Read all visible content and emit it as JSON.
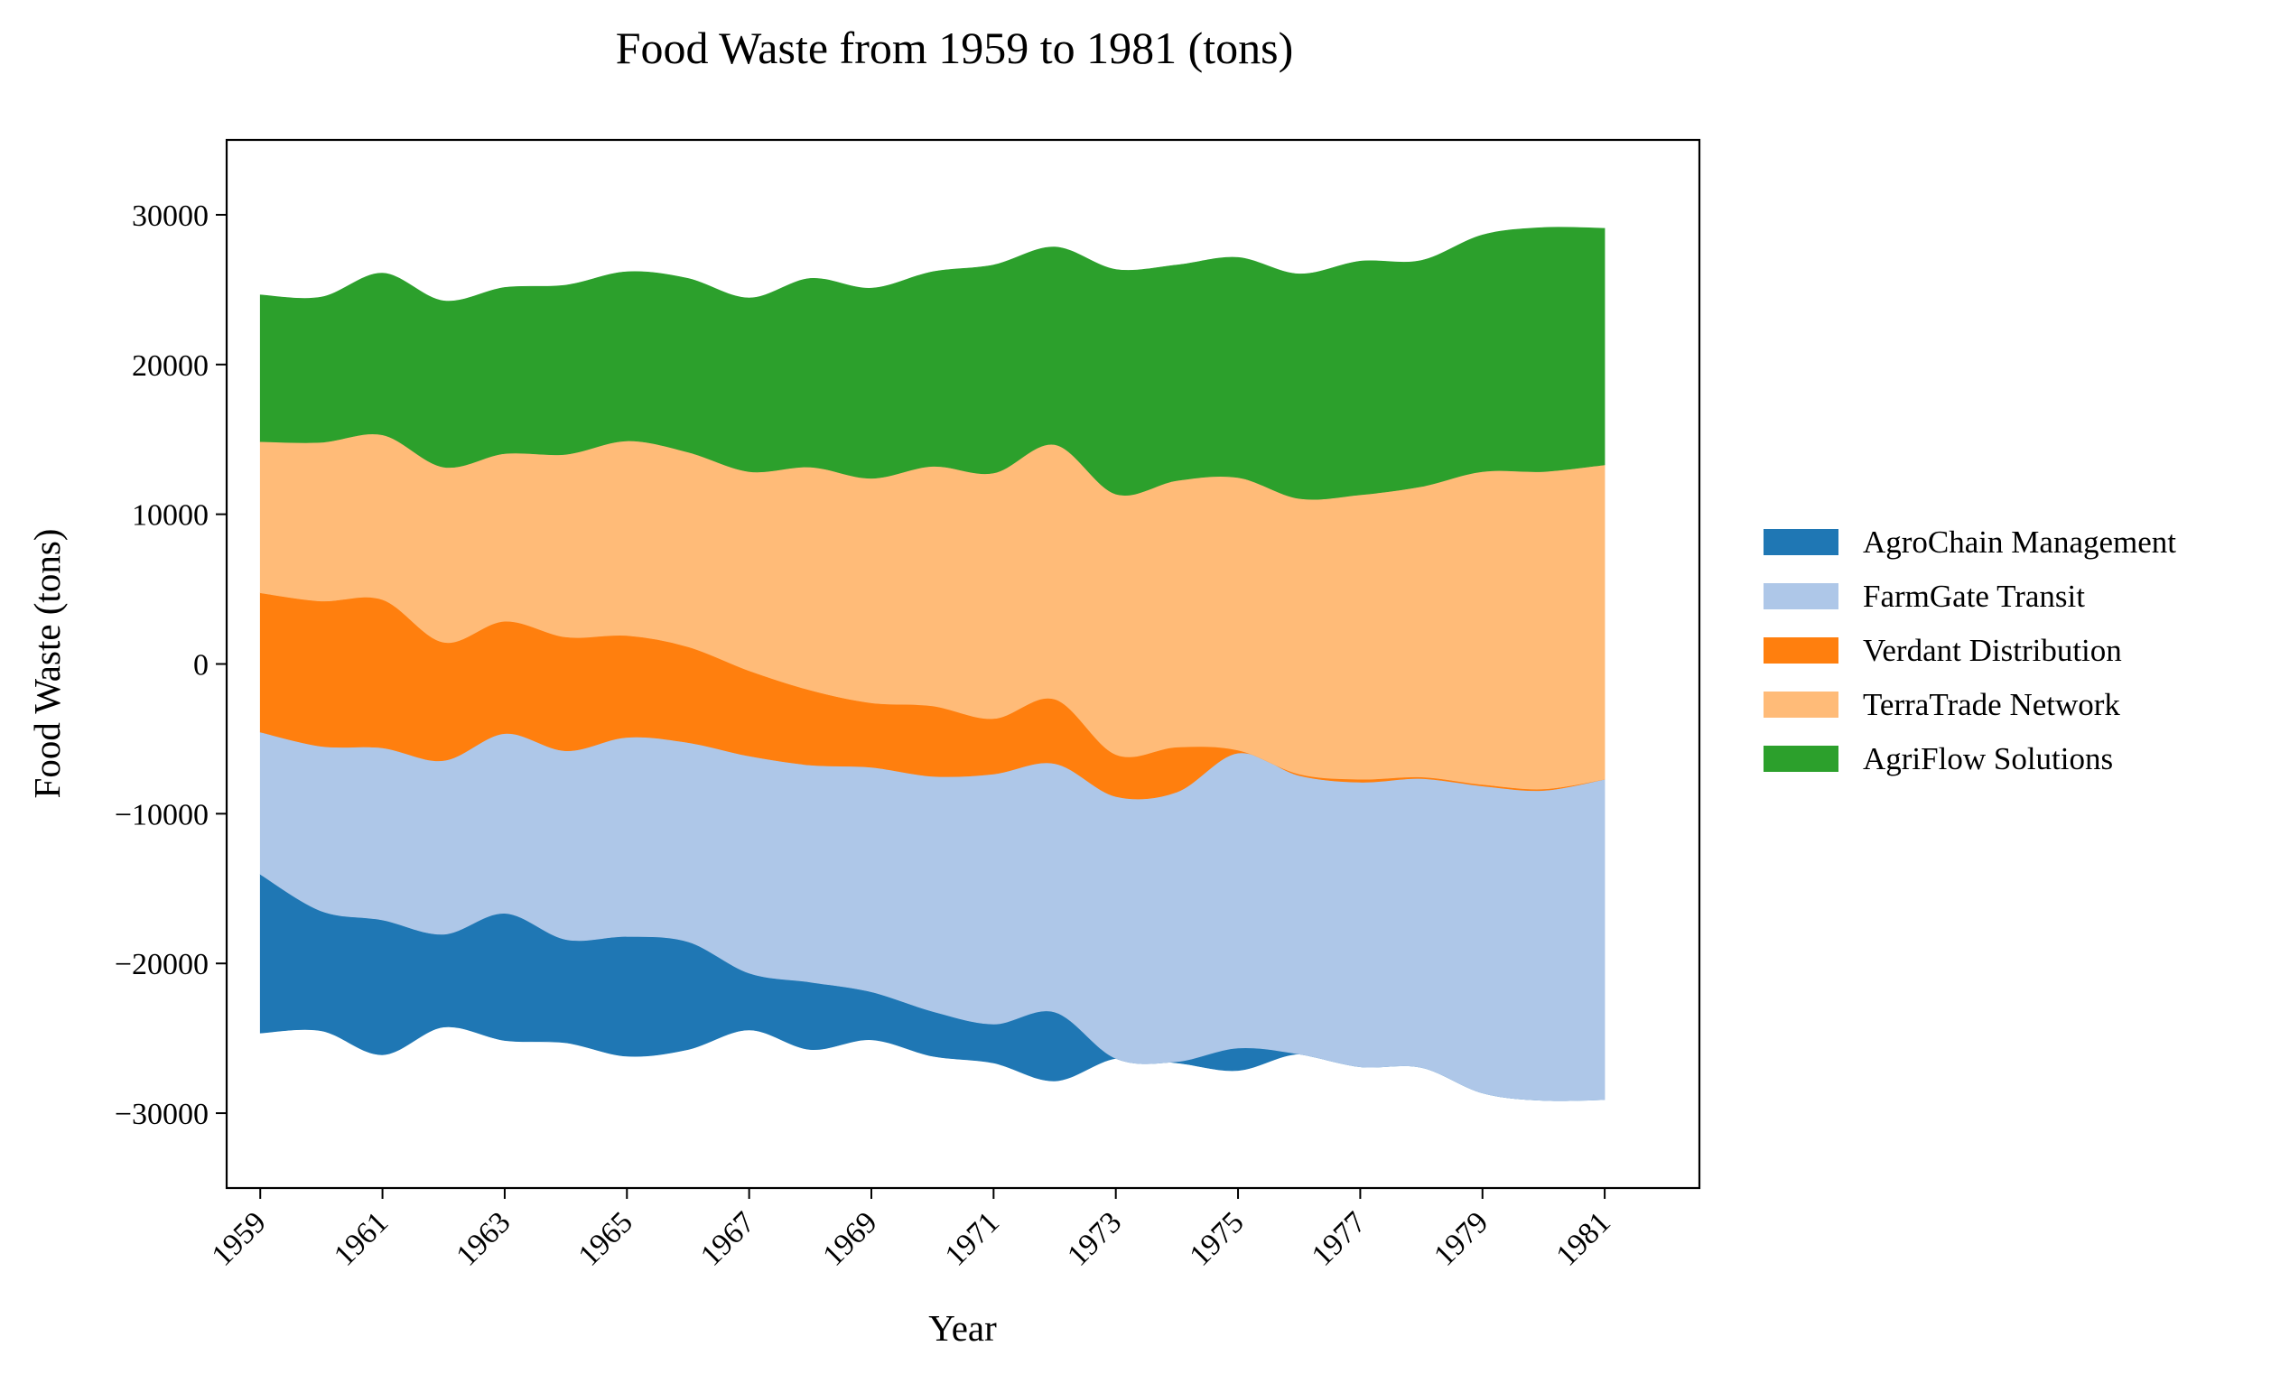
{
  "chart_data": {
    "type": "area",
    "subtype": "streamgraph",
    "title": "Food Waste from 1959 to 1981 (tons)",
    "xlabel": "Year",
    "ylabel": "Food Waste (tons)",
    "x": [
      1959,
      1960,
      1961,
      1962,
      1963,
      1964,
      1965,
      1966,
      1967,
      1968,
      1969,
      1970,
      1971,
      1972,
      1973,
      1974,
      1975,
      1976,
      1977,
      1978,
      1979,
      1980,
      1981
    ],
    "x_ticks": [
      "1959",
      "1961",
      "1963",
      "1965",
      "1967",
      "1969",
      "1971",
      "1973",
      "1975",
      "1977",
      "1979",
      "1981"
    ],
    "y_ticks": [
      "30000",
      "20000",
      "10000",
      "0",
      "−10000",
      "−20000",
      "−30000"
    ],
    "ylim": [
      -35000,
      35000
    ],
    "xlim": [
      1958.45,
      1982.55
    ],
    "baseline": "symmetric",
    "grid": false,
    "legend_position": "right",
    "series": [
      {
        "name": "AgroChain Management",
        "color": "#1f77b4",
        "values": [
          10600,
          8000,
          9000,
          6200,
          8500,
          6900,
          8000,
          7200,
          3800,
          4500,
          3200,
          3000,
          2600,
          4600,
          0,
          100,
          1500,
          0,
          0,
          0,
          0,
          0,
          0
        ]
      },
      {
        "name": "FarmGate Transit",
        "color": "#aec7e8",
        "values": [
          9500,
          11000,
          11500,
          11600,
          12000,
          12600,
          13300,
          13300,
          14500,
          14500,
          15000,
          15700,
          16700,
          16600,
          17500,
          18000,
          19700,
          18600,
          19000,
          19300,
          20500,
          20700,
          21400
        ]
      },
      {
        "name": "Verdant Distribution",
        "color": "#ff7f0e",
        "values": [
          9300,
          9700,
          9900,
          7900,
          7500,
          7600,
          6800,
          6400,
          5700,
          5000,
          4300,
          4700,
          3700,
          4300,
          2800,
          3000,
          200,
          100,
          200,
          100,
          100,
          100,
          0
        ]
      },
      {
        "name": "TerraTrade Network",
        "color": "#ffbb78",
        "values": [
          10100,
          10600,
          11000,
          11700,
          11200,
          12200,
          13000,
          13000,
          13300,
          14900,
          15000,
          16000,
          16400,
          17000,
          17400,
          17800,
          18200,
          18400,
          19000,
          19400,
          20900,
          21200,
          21000
        ]
      },
      {
        "name": "AgriFlow Solutions",
        "color": "#2ca02c",
        "values": [
          9800,
          9700,
          10800,
          11100,
          11100,
          11300,
          11300,
          11600,
          11600,
          12600,
          12700,
          13000,
          13900,
          13200,
          15000,
          14400,
          14700,
          15000,
          15600,
          15100,
          15800,
          16300,
          15800
        ]
      }
    ]
  }
}
